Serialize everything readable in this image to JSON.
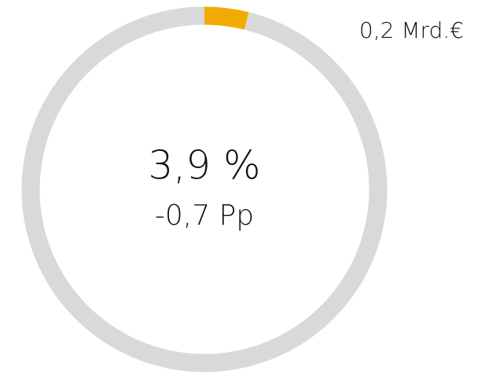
{
  "chart_data": {
    "type": "donut",
    "values": [
      3.9,
      96.1
    ],
    "value_labels": [
      "3,9 %",
      null
    ],
    "colors": [
      "#f0ab00",
      "#d9d9d9"
    ],
    "annotations": [
      "-0,7 Pp",
      "0,2 Mrd.€"
    ]
  }
}
